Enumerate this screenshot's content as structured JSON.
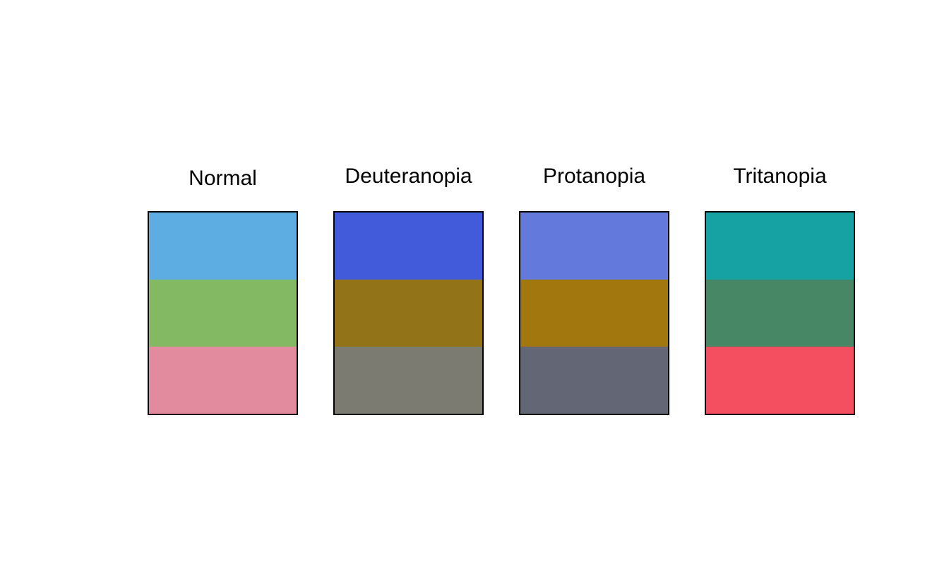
{
  "palettes": [
    {
      "title": "Normal",
      "swatches": [
        "#5DADE2",
        "#82B962",
        "#E28B9F"
      ]
    },
    {
      "title": "Deuteranopia",
      "swatches": [
        "#415BDA",
        "#937318",
        "#7B7B72"
      ]
    },
    {
      "title": "Protanopia",
      "swatches": [
        "#6379DC",
        "#A1770E",
        "#636775"
      ]
    },
    {
      "title": "Tritanopia",
      "swatches": [
        "#16A2A2",
        "#478766",
        "#F44F60"
      ]
    }
  ]
}
